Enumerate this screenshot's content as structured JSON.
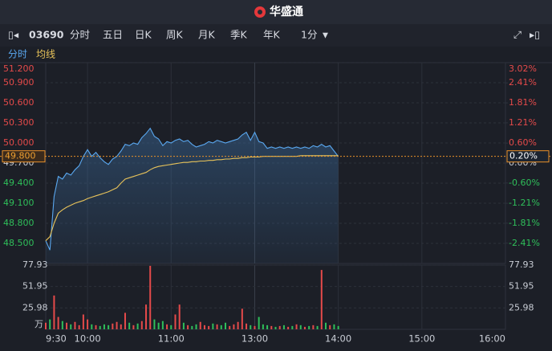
{
  "header": {
    "app_name": "华盛通"
  },
  "toolbar": {
    "code": "03690",
    "tabs": [
      "分时",
      "五日",
      "日K",
      "周K",
      "月K",
      "季K",
      "年K"
    ],
    "interval": "1分"
  },
  "chart_data": {
    "type": "line",
    "x": [
      0,
      3,
      6,
      9,
      12,
      15,
      18,
      21,
      24,
      27,
      30,
      33,
      36,
      39,
      42,
      45,
      48,
      51,
      54,
      57,
      60,
      63,
      66,
      69,
      72,
      75,
      78,
      81,
      84,
      87,
      90,
      93,
      96,
      99,
      102,
      105,
      108,
      111,
      114,
      117,
      120,
      123,
      126,
      129,
      132,
      135,
      138,
      141,
      144,
      147,
      150,
      153,
      156,
      159,
      162,
      165,
      168,
      171,
      174,
      177,
      180,
      183,
      186,
      189,
      192,
      195,
      198,
      201,
      204,
      207,
      210
    ],
    "series": [
      {
        "name": "分时",
        "color": "#5aa8f0",
        "values": [
          48.54,
          48.4,
          49.2,
          49.5,
          49.46,
          49.55,
          49.52,
          49.6,
          49.66,
          49.8,
          49.9,
          49.8,
          49.86,
          49.78,
          49.72,
          49.68,
          49.76,
          49.8,
          49.88,
          49.98,
          49.96,
          50.0,
          49.98,
          50.08,
          50.14,
          50.22,
          50.1,
          50.06,
          49.96,
          50.02,
          50.0,
          50.04,
          50.06,
          50.02,
          50.04,
          49.98,
          49.94,
          49.96,
          49.98,
          50.02,
          50.0,
          50.04,
          50.02,
          50.0,
          50.02,
          50.04,
          50.06,
          50.12,
          50.16,
          50.04,
          50.16,
          50.02,
          50.0,
          49.92,
          49.94,
          49.92,
          49.94,
          49.92,
          49.94,
          49.92,
          49.94,
          49.92,
          49.94,
          49.92,
          49.96,
          49.94,
          49.98,
          49.94,
          49.96,
          49.88,
          49.8
        ]
      },
      {
        "name": "均线",
        "color": "#e8c35a",
        "values": [
          48.54,
          48.6,
          48.8,
          48.95,
          49.0,
          49.04,
          49.07,
          49.1,
          49.12,
          49.14,
          49.17,
          49.19,
          49.21,
          49.23,
          49.25,
          49.27,
          49.3,
          49.33,
          49.4,
          49.46,
          49.48,
          49.5,
          49.52,
          49.54,
          49.56,
          49.6,
          49.63,
          49.65,
          49.66,
          49.67,
          49.68,
          49.69,
          49.7,
          49.71,
          49.71,
          49.72,
          49.72,
          49.73,
          49.73,
          49.74,
          49.74,
          49.75,
          49.75,
          49.76,
          49.76,
          49.77,
          49.77,
          49.78,
          49.78,
          49.79,
          49.79,
          49.79,
          49.8,
          49.8,
          49.8,
          49.8,
          49.8,
          49.8,
          49.8,
          49.8,
          49.8,
          49.81,
          49.81,
          49.81,
          49.81,
          49.81,
          49.81,
          49.81,
          49.81,
          49.81,
          49.81
        ]
      }
    ],
    "xlim": [
      0,
      330
    ],
    "xticks": [
      {
        "value": 0,
        "label": "9:30"
      },
      {
        "value": 30,
        "label": "10:00"
      },
      {
        "value": 90,
        "label": "11:00"
      },
      {
        "value": 150,
        "label": "13:00"
      },
      {
        "value": 210,
        "label": "14:00"
      },
      {
        "value": 270,
        "label": "15:00"
      },
      {
        "value": 330,
        "label": "16:00"
      }
    ],
    "ylim": [
      48.2,
      51.2
    ],
    "yticks": [
      {
        "value": 48.5,
        "label": "48.500"
      },
      {
        "value": 48.8,
        "label": "48.800"
      },
      {
        "value": 49.1,
        "label": "49.100"
      },
      {
        "value": 49.4,
        "label": "49.400"
      },
      {
        "value": 49.7,
        "label": "49.700"
      },
      {
        "value": 50.0,
        "label": "50.000"
      },
      {
        "value": 50.3,
        "label": "50.300"
      },
      {
        "value": 50.6,
        "label": "50.600"
      },
      {
        "value": 50.9,
        "label": "50.900"
      },
      {
        "value": 51.2,
        "label": "51.200"
      }
    ],
    "y2lim": [
      -3.02,
      3.02
    ],
    "y2ticks": [
      {
        "value": -2.41,
        "label": "-2.41%"
      },
      {
        "value": -1.81,
        "label": "-1.81%"
      },
      {
        "value": -1.21,
        "label": "-1.21%"
      },
      {
        "value": -0.6,
        "label": "-0.60%"
      },
      {
        "value": 0,
        "label": "0.00%"
      },
      {
        "value": 0.6,
        "label": "0.60%"
      },
      {
        "value": 1.21,
        "label": "1.21%"
      },
      {
        "value": 1.81,
        "label": "1.81%"
      },
      {
        "value": 2.41,
        "label": "2.41%"
      },
      {
        "value": 3.02,
        "label": "3.02%"
      }
    ],
    "last_price": {
      "value": 49.8,
      "label": "49.800"
    },
    "last_change": {
      "value": 0.2,
      "label": "0.20%"
    },
    "grid": true,
    "volume": {
      "values": [
        8,
        12,
        41,
        15,
        10,
        8,
        6,
        9,
        5,
        18,
        12,
        6,
        5,
        4,
        6,
        5,
        7,
        9,
        6,
        20,
        8,
        5,
        7,
        10,
        30,
        77,
        12,
        8,
        10,
        6,
        5,
        18,
        30,
        8,
        5,
        4,
        6,
        9,
        5,
        4,
        7,
        6,
        5,
        8,
        4,
        6,
        9,
        25,
        7,
        5,
        4,
        15,
        6,
        5,
        4,
        3,
        4,
        5,
        3,
        4,
        6,
        5,
        3,
        4,
        5,
        4,
        72,
        8,
        5,
        6,
        4
      ],
      "ylim": [
        0,
        77.93
      ],
      "yticks": [
        25.98,
        51.95,
        77.93
      ],
      "unit": "万"
    }
  }
}
